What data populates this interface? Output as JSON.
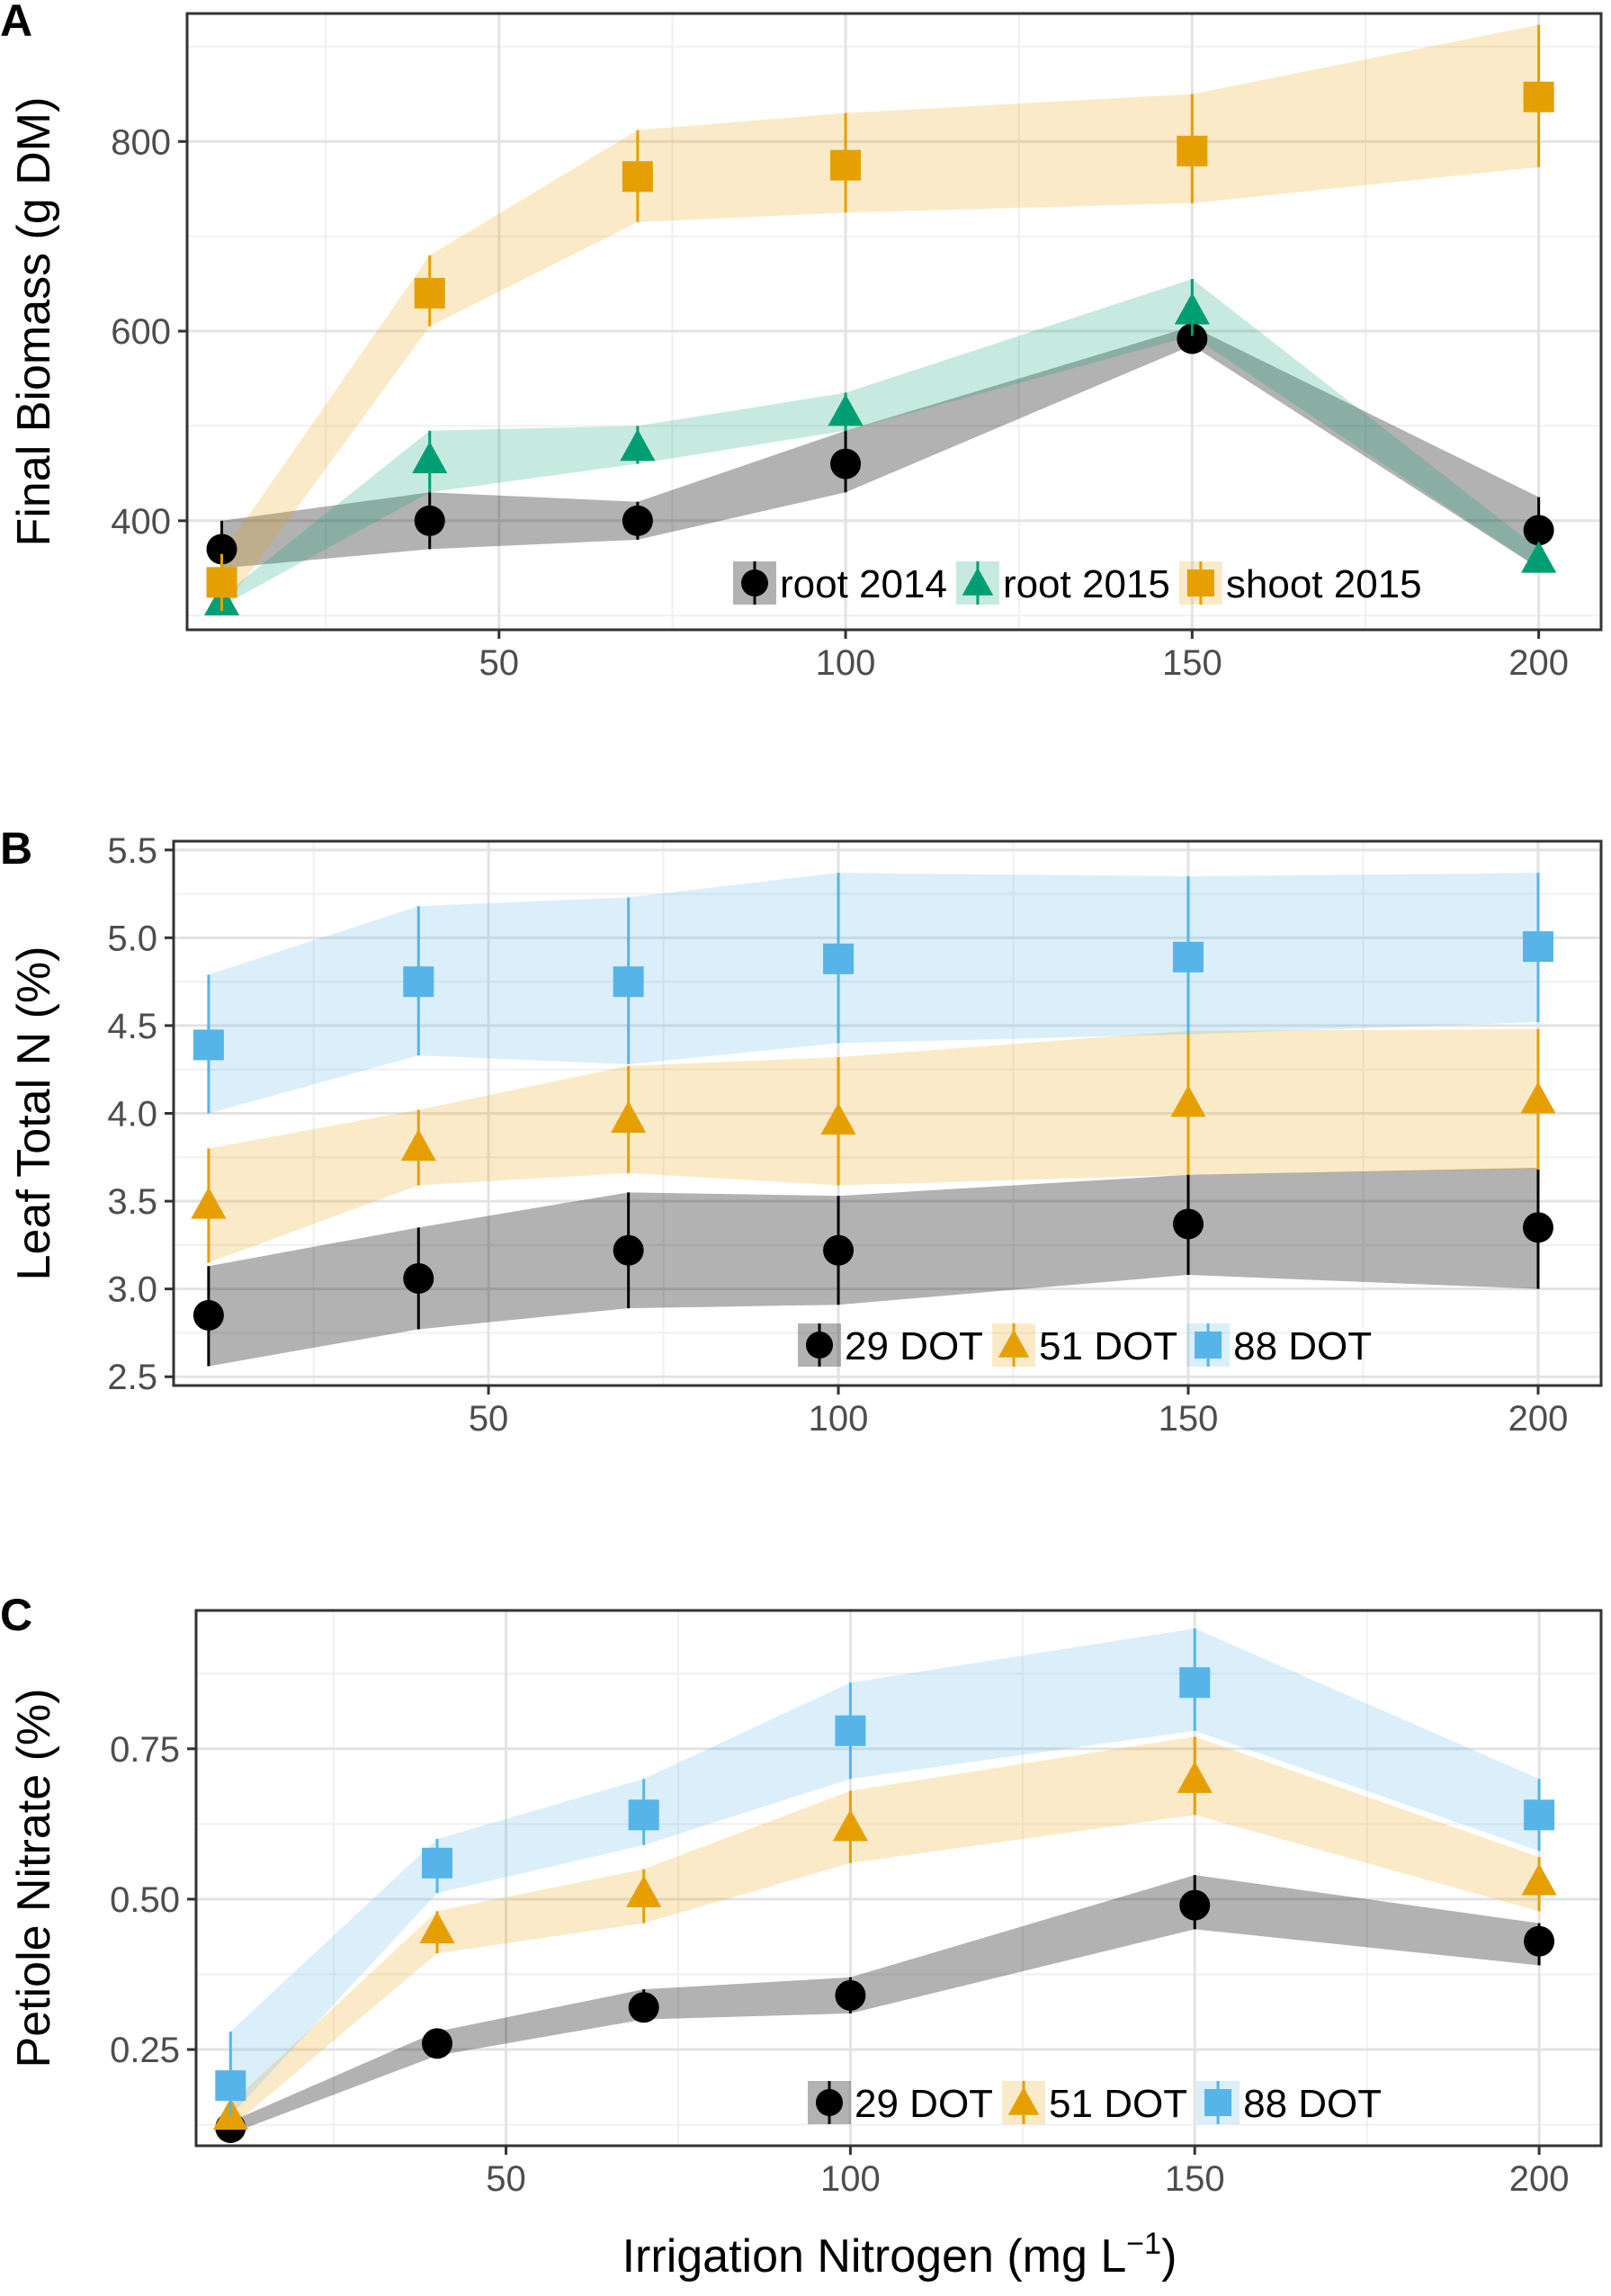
{
  "figure": {
    "xlabel_main": "Irrigation Nitrogen (mg L",
    "xlabel_sup": "−1",
    "xlabel_close": ")"
  },
  "chart_data": [
    {
      "panel": "A",
      "type": "line",
      "ylabel": "Final Biomass (g DM)",
      "xlim": [
        5,
        209
      ],
      "ylim": [
        285,
        935
      ],
      "xticks": [
        50,
        100,
        150,
        200
      ],
      "yticks": [
        400,
        600,
        800
      ],
      "x": [
        10,
        40,
        70,
        100,
        150,
        200
      ],
      "series": [
        {
          "name": "root 2014",
          "color": "#000000",
          "marker": "circle",
          "values": [
            370,
            400,
            400,
            460,
            592,
            390
          ],
          "lower": [
            350,
            370,
            380,
            430,
            585,
            350
          ],
          "upper": [
            400,
            430,
            420,
            495,
            605,
            425
          ]
        },
        {
          "name": "root 2015",
          "color": "#009e73",
          "marker": "triangle",
          "values": [
            315,
            465,
            478,
            515,
            622,
            360
          ],
          "lower": [
            310,
            430,
            460,
            495,
            595,
            350
          ],
          "upper": [
            320,
            495,
            500,
            535,
            655,
            370
          ]
        },
        {
          "name": "shoot 2015",
          "color": "#e69f00",
          "marker": "square",
          "values": [
            335,
            640,
            763,
            775,
            790,
            847
          ],
          "lower": [
            305,
            605,
            715,
            725,
            735,
            773
          ],
          "upper": [
            365,
            680,
            812,
            830,
            850,
            923
          ]
        }
      ],
      "legend": [
        "root 2014",
        "root 2015",
        "shoot 2015"
      ]
    },
    {
      "panel": "B",
      "type": "line",
      "ylabel": "Leaf Total N (%)",
      "xlim": [
        5,
        209
      ],
      "ylim": [
        2.45,
        5.55
      ],
      "xticks": [
        50,
        100,
        150,
        200
      ],
      "yticks": [
        2.5,
        3.0,
        3.5,
        4.0,
        4.5,
        5.0,
        5.5
      ],
      "ytick_labels": [
        "2.5",
        "3.0",
        "3.5",
        "4.0",
        "4.5",
        "5.0",
        "5.5"
      ],
      "x": [
        10,
        40,
        70,
        100,
        150,
        200
      ],
      "series": [
        {
          "name": "29 DOT",
          "color": "#000000",
          "marker": "circle",
          "values": [
            2.85,
            3.06,
            3.22,
            3.22,
            3.37,
            3.35
          ],
          "lower": [
            2.56,
            2.77,
            2.89,
            2.91,
            3.08,
            3.0
          ],
          "upper": [
            3.13,
            3.35,
            3.55,
            3.53,
            3.65,
            3.69
          ]
        },
        {
          "name": "51 DOT",
          "color": "#e69f00",
          "marker": "triangle",
          "values": [
            3.48,
            3.81,
            3.97,
            3.96,
            4.06,
            4.08
          ],
          "lower": [
            3.15,
            3.59,
            3.66,
            3.59,
            3.65,
            3.68
          ],
          "upper": [
            3.8,
            4.02,
            4.27,
            4.32,
            4.47,
            4.48
          ]
        },
        {
          "name": "88 DOT",
          "color": "#56b4e9",
          "marker": "square",
          "values": [
            4.39,
            4.75,
            4.75,
            4.88,
            4.89,
            4.95
          ],
          "lower": [
            4.0,
            4.33,
            4.28,
            4.4,
            4.45,
            4.52
          ],
          "upper": [
            4.79,
            5.18,
            5.23,
            5.37,
            5.35,
            5.37
          ]
        }
      ],
      "legend": [
        "29 DOT",
        "51 DOT",
        "88 DOT"
      ]
    },
    {
      "panel": "C",
      "type": "line",
      "ylabel": "Petiole Nitrate (%)",
      "xlim": [
        5,
        209
      ],
      "ylim": [
        0.09,
        0.98
      ],
      "xticks": [
        50,
        100,
        150,
        200
      ],
      "yticks": [
        0.25,
        0.5,
        0.75
      ],
      "ytick_labels": [
        "0.25",
        "0.50",
        "0.75"
      ],
      "x": [
        10,
        40,
        70,
        100,
        150,
        200
      ],
      "series": [
        {
          "name": "29 DOT",
          "color": "#000000",
          "marker": "circle",
          "values": [
            0.12,
            0.26,
            0.32,
            0.34,
            0.49,
            0.43
          ],
          "lower": [
            0.11,
            0.24,
            0.3,
            0.31,
            0.45,
            0.39
          ],
          "upper": [
            0.13,
            0.28,
            0.35,
            0.37,
            0.54,
            0.46
          ]
        },
        {
          "name": "51 DOT",
          "color": "#e69f00",
          "marker": "triangle",
          "values": [
            0.14,
            0.45,
            0.51,
            0.62,
            0.7,
            0.53
          ],
          "lower": [
            0.12,
            0.41,
            0.46,
            0.56,
            0.64,
            0.48
          ],
          "upper": [
            0.16,
            0.48,
            0.55,
            0.68,
            0.77,
            0.57
          ]
        },
        {
          "name": "88 DOT",
          "color": "#56b4e9",
          "marker": "square",
          "values": [
            0.19,
            0.56,
            0.64,
            0.78,
            0.86,
            0.64
          ],
          "lower": [
            0.14,
            0.51,
            0.59,
            0.7,
            0.78,
            0.58
          ],
          "upper": [
            0.28,
            0.6,
            0.7,
            0.86,
            0.95,
            0.7
          ]
        }
      ],
      "legend": [
        "29 DOT",
        "51 DOT",
        "88 DOT"
      ]
    }
  ]
}
